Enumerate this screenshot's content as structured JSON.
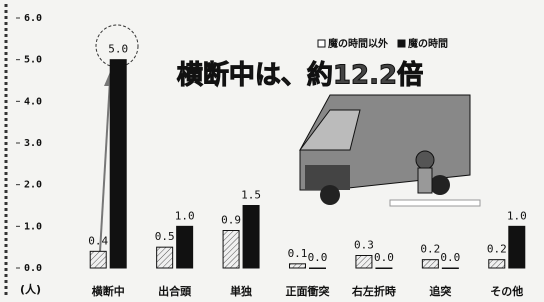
{
  "chart_data": {
    "type": "bar",
    "annotation": "横断中は、約12.2倍",
    "y_unit": "(人)",
    "categories": [
      "横断中",
      "出合頭",
      "単独",
      "正面衝突",
      "右左折時",
      "追突",
      "その他"
    ],
    "series": [
      {
        "name": "魔の時間以外",
        "color": "#dcdcdc",
        "values": [
          0.4,
          0.5,
          0.9,
          0.1,
          0.3,
          0.2,
          0.2
        ]
      },
      {
        "name": "魔の時間",
        "color": "#111111",
        "values": [
          5.0,
          1.0,
          1.5,
          0.0,
          0.0,
          0.0,
          1.0
        ],
        "value_labels": [
          "5.0",
          "1.0",
          "1.5",
          "0.0",
          "0.0",
          "0.0",
          "1.0"
        ]
      }
    ],
    "ylim": [
      0,
      6
    ],
    "yticks": [
      {
        "value": 0,
        "label": "0.0"
      },
      {
        "value": 1,
        "label": "1.0"
      },
      {
        "value": 2,
        "label": "2.0"
      },
      {
        "value": 3,
        "label": "3.0"
      },
      {
        "value": 4,
        "label": "4.0"
      },
      {
        "value": 5,
        "label": "5.0"
      },
      {
        "value": 6,
        "label": "6.0"
      }
    ],
    "legend": "top-right"
  }
}
